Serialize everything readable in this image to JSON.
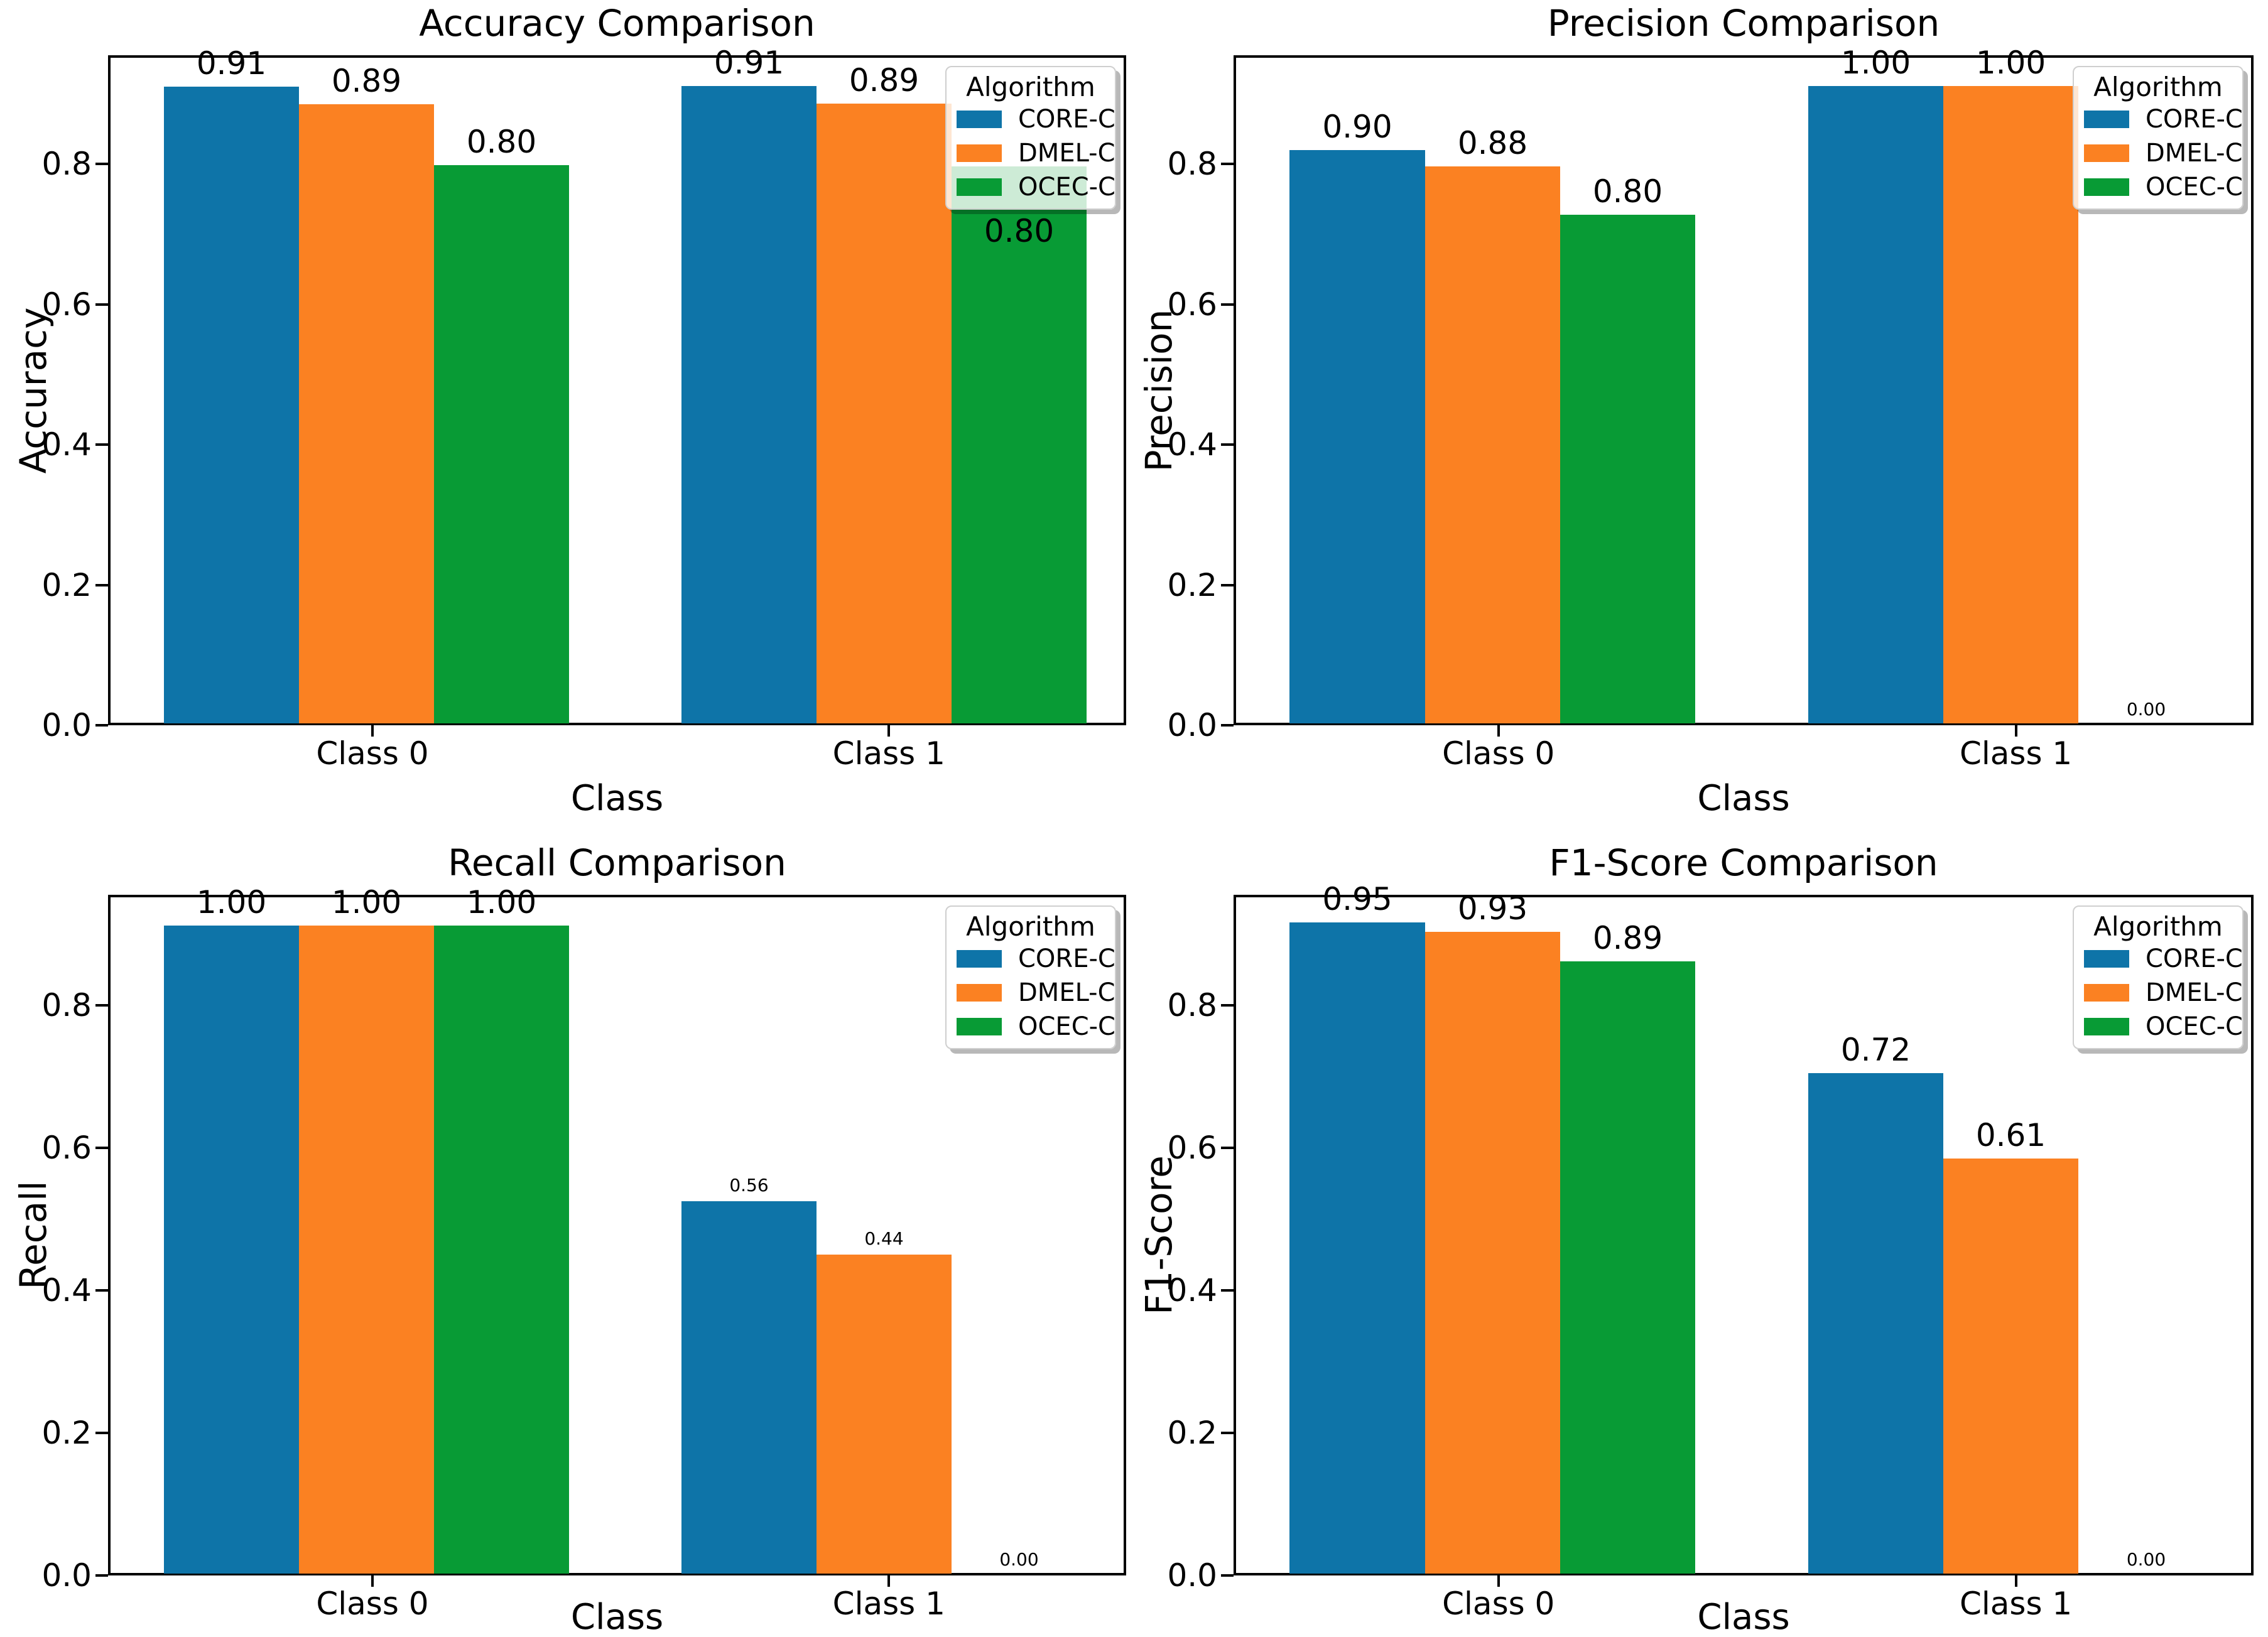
{
  "figure": {
    "background": "#ffffff"
  },
  "colors": {
    "core_c": "#0e74a8",
    "dmel_c": "#fb8122",
    "ocec_c": "#089b35"
  },
  "chart_data": [
    {
      "type": "bar",
      "title": "Accuracy Comparison",
      "xlabel": "Class",
      "ylabel": "Accuracy",
      "categories": [
        "Class 0",
        "Class 1"
      ],
      "ylim": [
        0,
        0.955
      ],
      "yticks": [
        "0.0",
        "0.2",
        "0.4",
        "0.6",
        "0.8"
      ],
      "grid": false,
      "legend": {
        "title": "Algorithm",
        "position": "upper right",
        "entries": [
          {
            "label": "CORE-C",
            "color": "#0e74a8"
          },
          {
            "label": "DMEL-C",
            "color": "#fb8122"
          },
          {
            "label": "OCEC-C",
            "color": "#089b35"
          }
        ]
      },
      "series": [
        {
          "name": "CORE-C",
          "color": "#0e74a8",
          "values": [
            0.91,
            0.91
          ],
          "labels": [
            "0.91",
            "0.91"
          ],
          "drawn_heights": [
            0.91,
            0.911
          ],
          "label_small": [
            false,
            false
          ],
          "label_dy": [
            0,
            0
          ]
        },
        {
          "name": "DMEL-C",
          "color": "#fb8122",
          "values": [
            0.89,
            0.89
          ],
          "labels": [
            "0.89",
            "0.89"
          ],
          "drawn_heights": [
            0.885,
            0.886
          ],
          "label_small": [
            false,
            false
          ],
          "label_dy": [
            0,
            0
          ]
        },
        {
          "name": "OCEC-C",
          "color": "#089b35",
          "values": [
            0.8,
            0.8
          ],
          "labels": [
            "0.80",
            "0.80"
          ],
          "drawn_heights": [
            0.798,
            0.797
          ],
          "label_small": [
            false,
            false
          ],
          "label_dy": [
            0,
            140
          ]
        }
      ]
    },
    {
      "type": "bar",
      "title": "Precision Comparison",
      "xlabel": "Class",
      "ylabel": "Precision",
      "categories": [
        "Class 0",
        "Class 1"
      ],
      "ylim": [
        0,
        0.955
      ],
      "yticks": [
        "0.0",
        "0.2",
        "0.4",
        "0.6",
        "0.8"
      ],
      "grid": false,
      "legend": {
        "title": "Algorithm",
        "position": "upper right",
        "entries": [
          {
            "label": "CORE-C",
            "color": "#0e74a8"
          },
          {
            "label": "DMEL-C",
            "color": "#fb8122"
          },
          {
            "label": "OCEC-C",
            "color": "#089b35"
          }
        ]
      },
      "series": [
        {
          "name": "CORE-C",
          "color": "#0e74a8",
          "values": [
            0.9,
            1.0
          ],
          "labels": [
            "0.90",
            "1.00"
          ],
          "drawn_heights": [
            0.82,
            0.911
          ],
          "label_small": [
            false,
            false
          ],
          "label_dy": [
            0,
            0
          ]
        },
        {
          "name": "DMEL-C",
          "color": "#fb8122",
          "values": [
            0.88,
            1.0
          ],
          "labels": [
            "0.88",
            "1.00"
          ],
          "drawn_heights": [
            0.797,
            0.911
          ],
          "label_small": [
            false,
            false
          ],
          "label_dy": [
            0,
            0
          ]
        },
        {
          "name": "OCEC-C",
          "color": "#089b35",
          "values": [
            0.8,
            0.0
          ],
          "labels": [
            "0.80",
            "0.00"
          ],
          "drawn_heights": [
            0.728,
            0.0
          ],
          "label_small": [
            false,
            true
          ],
          "label_dy": [
            0,
            0
          ]
        }
      ]
    },
    {
      "type": "bar",
      "title": "Recall Comparison",
      "xlabel": "Class",
      "ylabel": "Recall",
      "categories": [
        "Class 0",
        "Class 1"
      ],
      "ylim": [
        0,
        0.955
      ],
      "yticks": [
        "0.0",
        "0.2",
        "0.4",
        "0.6",
        "0.8"
      ],
      "grid": false,
      "legend": {
        "title": "Algorithm",
        "position": "upper right",
        "entries": [
          {
            "label": "CORE-C",
            "color": "#0e74a8"
          },
          {
            "label": "DMEL-C",
            "color": "#fb8122"
          },
          {
            "label": "OCEC-C",
            "color": "#089b35"
          }
        ]
      },
      "series": [
        {
          "name": "CORE-C",
          "color": "#0e74a8",
          "values": [
            1.0,
            0.56
          ],
          "labels": [
            "1.00",
            "0.56"
          ],
          "drawn_heights": [
            0.912,
            0.525
          ],
          "label_small": [
            false,
            true
          ],
          "label_dy": [
            0,
            0
          ]
        },
        {
          "name": "DMEL-C",
          "color": "#fb8122",
          "values": [
            1.0,
            0.44
          ],
          "labels": [
            "1.00",
            "0.44"
          ],
          "drawn_heights": [
            0.912,
            0.45
          ],
          "label_small": [
            false,
            true
          ],
          "label_dy": [
            0,
            0
          ]
        },
        {
          "name": "OCEC-C",
          "color": "#089b35",
          "values": [
            1.0,
            0.0
          ],
          "labels": [
            "1.00",
            "0.00"
          ],
          "drawn_heights": [
            0.912,
            0.0
          ],
          "label_small": [
            false,
            true
          ],
          "label_dy": [
            0,
            0
          ]
        }
      ]
    },
    {
      "type": "bar",
      "title": "F1-Score Comparison",
      "xlabel": "Class",
      "ylabel": "F1-Score",
      "categories": [
        "Class 0",
        "Class 1"
      ],
      "ylim": [
        0,
        0.955
      ],
      "yticks": [
        "0.0",
        "0.2",
        "0.4",
        "0.6",
        "0.8"
      ],
      "grid": false,
      "legend": {
        "title": "Algorithm",
        "position": "upper right",
        "entries": [
          {
            "label": "CORE-C",
            "color": "#0e74a8"
          },
          {
            "label": "DMEL-C",
            "color": "#fb8122"
          },
          {
            "label": "OCEC-C",
            "color": "#089b35"
          }
        ]
      },
      "series": [
        {
          "name": "CORE-C",
          "color": "#0e74a8",
          "values": [
            0.95,
            0.72
          ],
          "labels": [
            "0.95",
            "0.72"
          ],
          "drawn_heights": [
            0.916,
            0.705
          ],
          "label_small": [
            false,
            false
          ],
          "label_dy": [
            0,
            0
          ]
        },
        {
          "name": "DMEL-C",
          "color": "#fb8122",
          "values": [
            0.93,
            0.61
          ],
          "labels": [
            "0.93",
            "0.61"
          ],
          "drawn_heights": [
            0.903,
            0.585
          ],
          "label_small": [
            false,
            false
          ],
          "label_dy": [
            0,
            0
          ]
        },
        {
          "name": "OCEC-C",
          "color": "#089b35",
          "values": [
            0.89,
            0.0
          ],
          "labels": [
            "0.89",
            "0.00"
          ],
          "drawn_heights": [
            0.862,
            0.0
          ],
          "label_small": [
            false,
            true
          ],
          "label_dy": [
            0,
            0
          ]
        }
      ]
    }
  ]
}
